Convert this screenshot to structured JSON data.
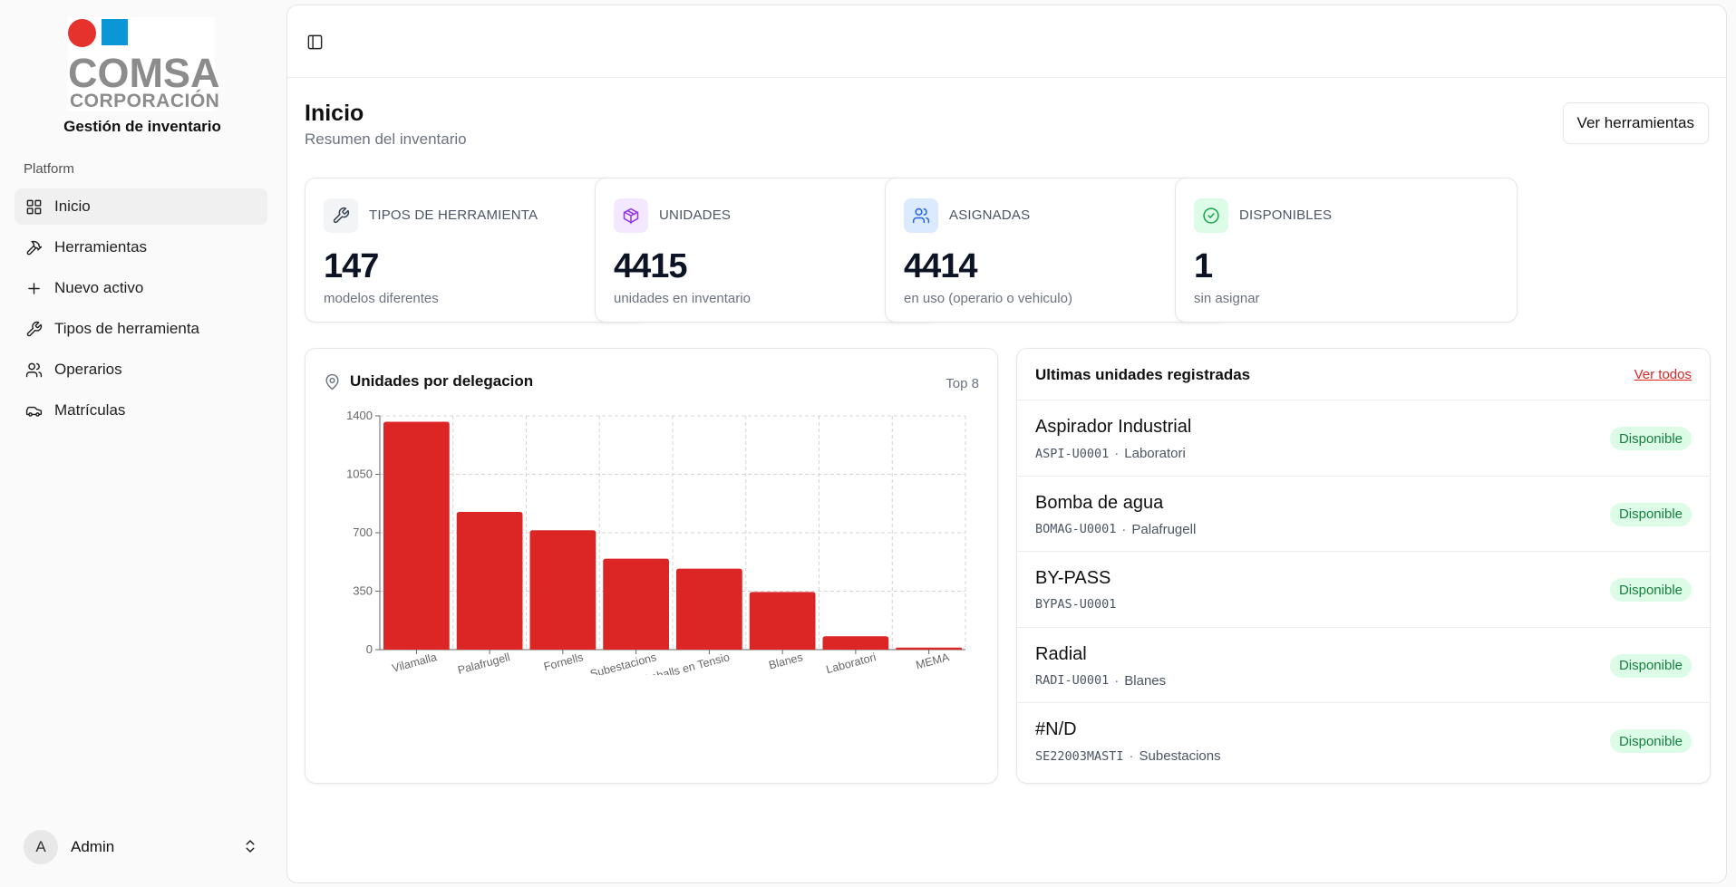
{
  "brand": {
    "logo_main": "COMSA",
    "logo_sub": "CORPORACIÓN",
    "app_title": "Gestión de inventario",
    "colors": {
      "red": "#e5322d",
      "blue": "#0b96d6",
      "gray": "#8c8c8c"
    }
  },
  "sidebar": {
    "group_label": "Platform",
    "items": [
      {
        "label": "Inicio",
        "icon": "grid-icon",
        "active": true
      },
      {
        "label": "Herramientas",
        "icon": "hammer-icon"
      },
      {
        "label": "Nuevo activo",
        "icon": "plus-icon"
      },
      {
        "label": "Tipos de herramienta",
        "icon": "wrench-icon"
      },
      {
        "label": "Operarios",
        "icon": "users-icon"
      },
      {
        "label": "Matrículas",
        "icon": "car-icon"
      }
    ],
    "user": {
      "initial": "A",
      "name": "Admin"
    }
  },
  "header": {
    "title": "Inicio",
    "subtitle": "Resumen del inventario",
    "action_label": "Ver herramientas"
  },
  "stats": [
    {
      "label": "TIPOS DE HERRAMIENTA",
      "value": "147",
      "desc": "modelos diferentes",
      "icon": "wrench-icon",
      "color": "#374151",
      "bg": "#f3f4f6"
    },
    {
      "label": "UNIDADES",
      "value": "4415",
      "desc": "unidades en inventario",
      "icon": "package-icon",
      "color": "#9333ea",
      "bg": "#f3e8ff"
    },
    {
      "label": "ASIGNADAS",
      "value": "4414",
      "desc": "en uso (operario o vehiculo)",
      "icon": "users-icon",
      "color": "#2563eb",
      "bg": "#dbeafe"
    },
    {
      "label": "DISPONIBLES",
      "value": "1",
      "desc": "sin asignar",
      "icon": "check-circle-icon",
      "color": "#16a34a",
      "bg": "#dcfce7"
    }
  ],
  "chart_panel": {
    "title": "Unidades por delegacion",
    "badge": "Top 8"
  },
  "chart_data": {
    "type": "bar",
    "categories": [
      "Vilamalla",
      "Palafrugell",
      "Fornells",
      "Subestacions",
      "Treballs en Tensio",
      "Blanes",
      "Laboratori",
      "MEMA"
    ],
    "values": [
      1365,
      825,
      715,
      545,
      485,
      345,
      80,
      12
    ],
    "ylim": [
      0,
      1400
    ],
    "yticks": [
      0,
      350,
      700,
      1050,
      1400
    ],
    "grid": true,
    "bar_color": "#dc2626"
  },
  "recent": {
    "title": "Ultimas unidades registradas",
    "link_label": "Ver todos",
    "rows": [
      {
        "name": "Aspirador Industrial",
        "code": "ASPI-U0001",
        "location": "Laboratori",
        "status": "Disponible"
      },
      {
        "name": "Bomba de agua",
        "code": "BOMAG-U0001",
        "location": "Palafrugell",
        "status": "Disponible"
      },
      {
        "name": "BY-PASS",
        "code": "BYPAS-U0001",
        "location": "",
        "status": "Disponible"
      },
      {
        "name": "Radial",
        "code": "RADI-U0001",
        "location": "Blanes",
        "status": "Disponible"
      },
      {
        "name": "#N/D",
        "code": "SE22003MASTI",
        "location": "Subestacions",
        "status": "Disponible"
      }
    ]
  }
}
